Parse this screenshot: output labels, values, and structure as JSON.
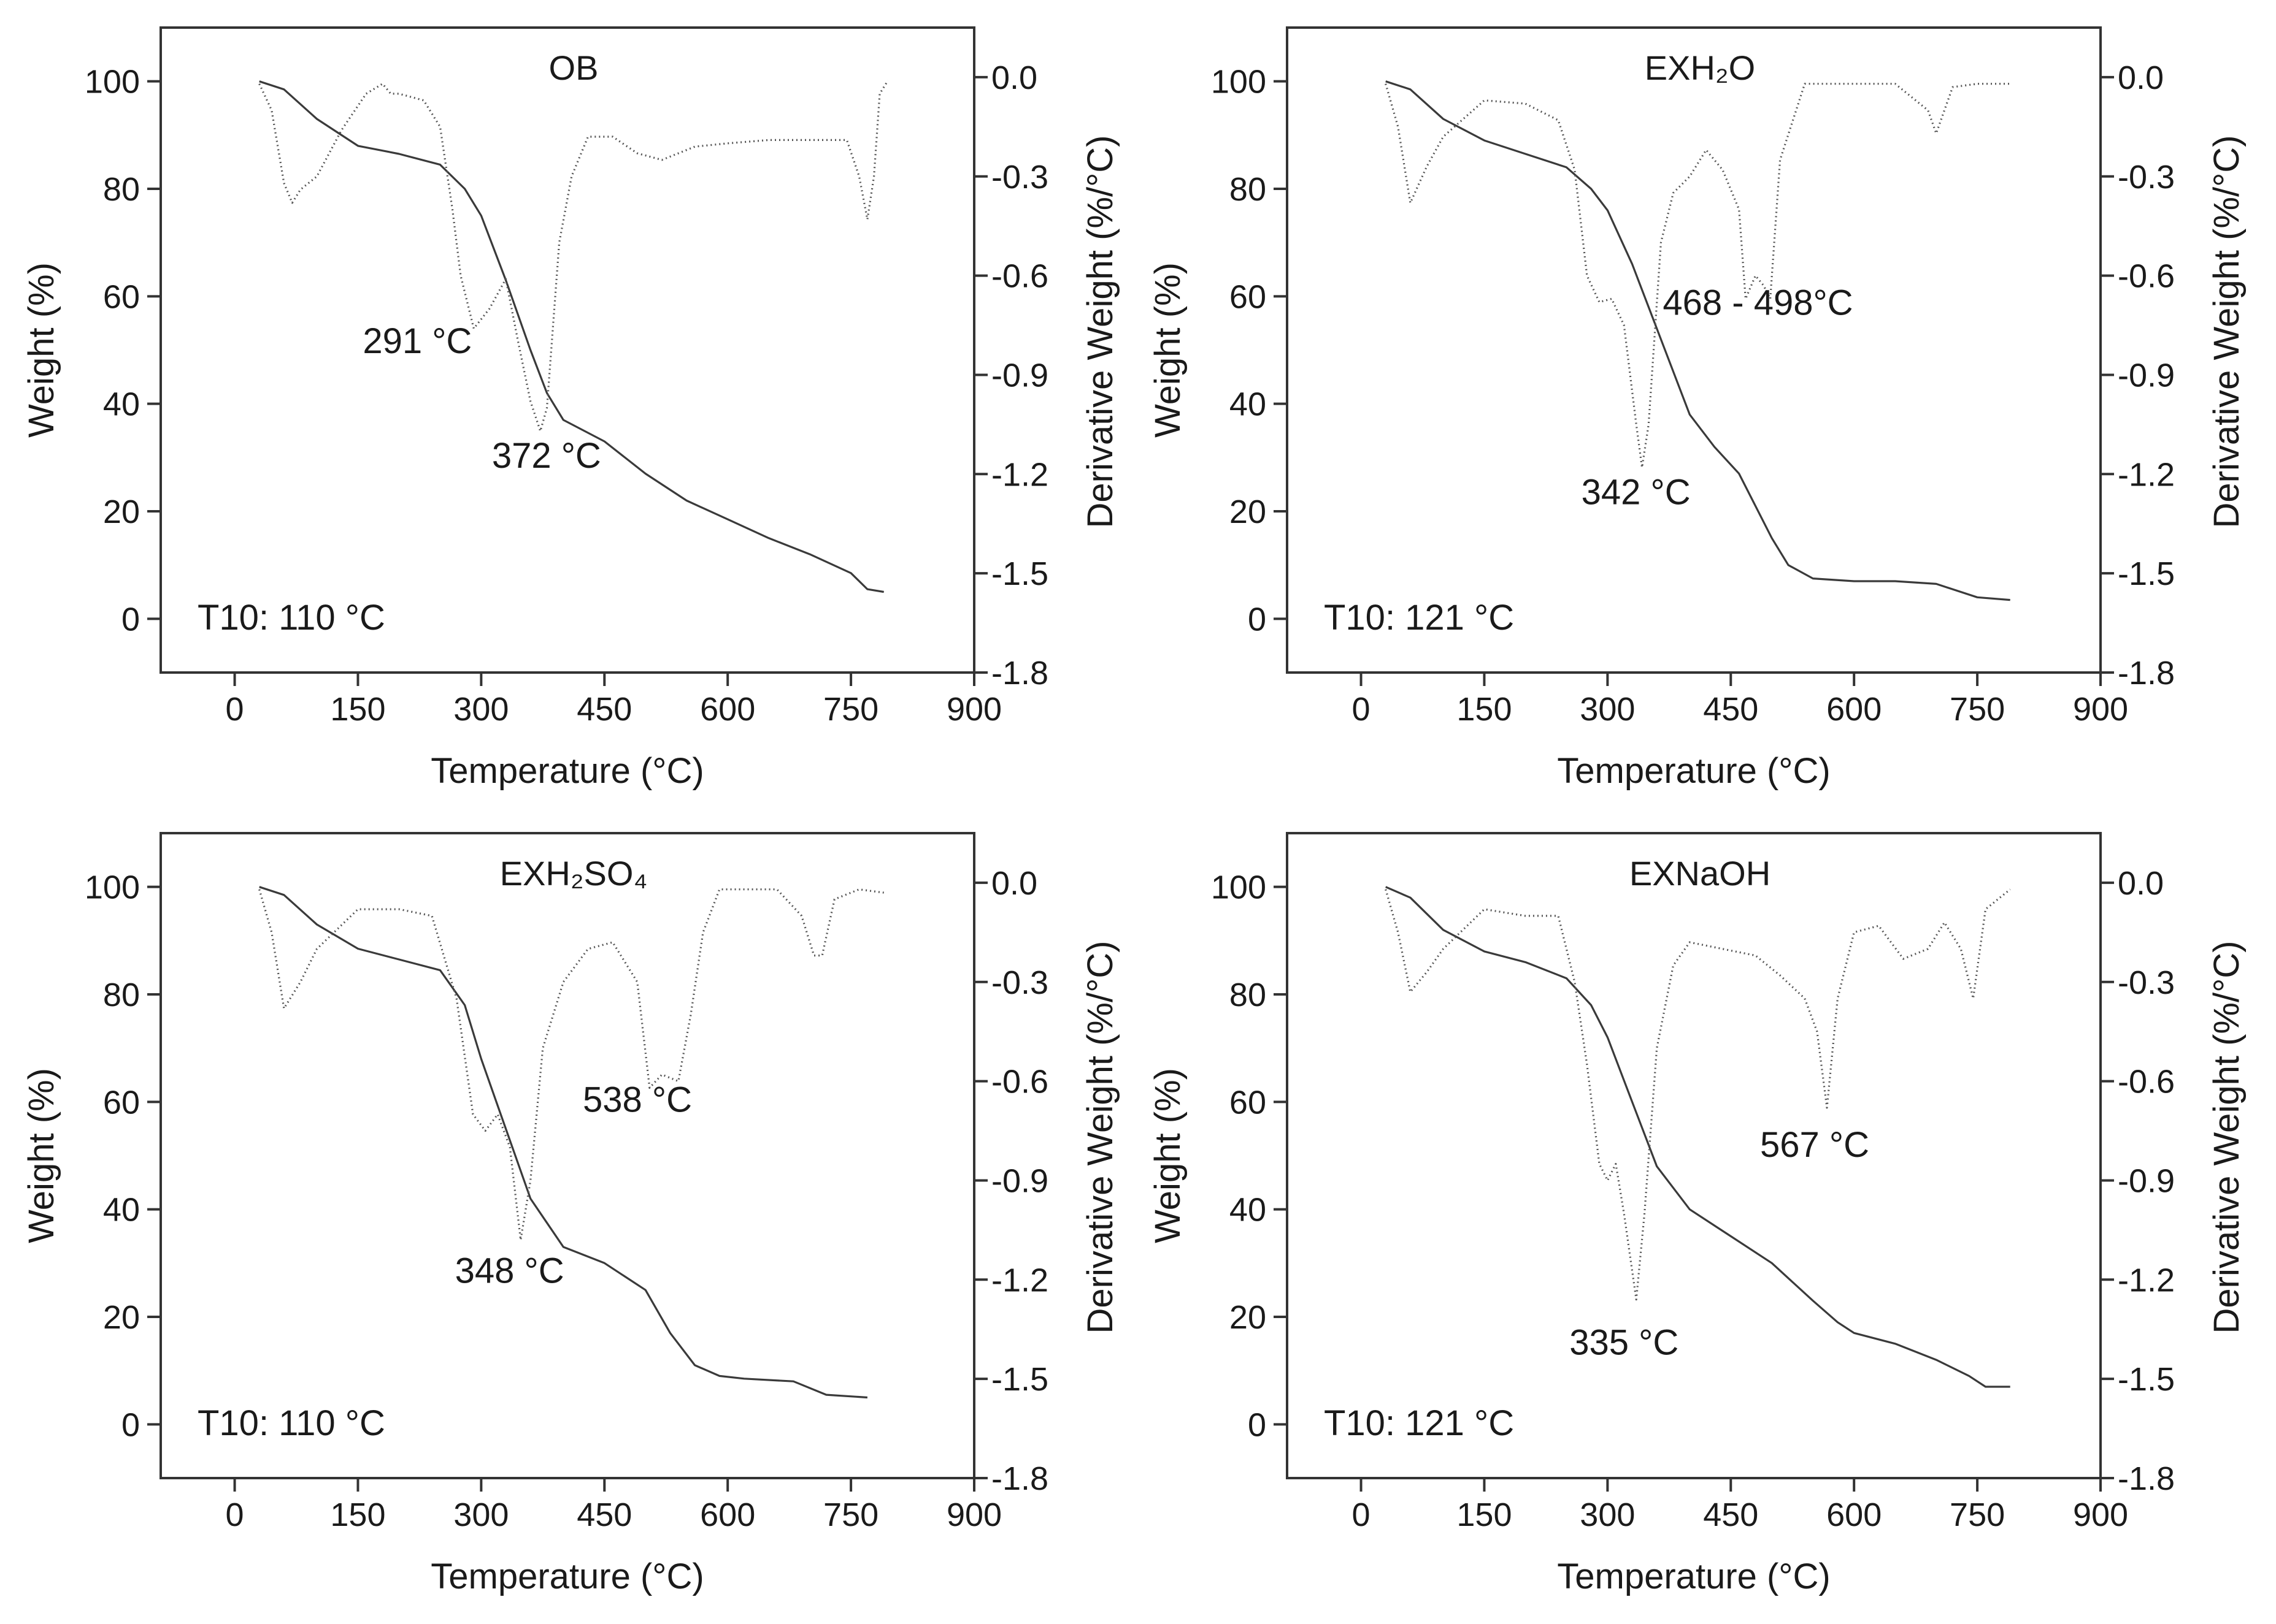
{
  "chart_data": [
    {
      "type": "line",
      "title": "OB",
      "xlabel": "Temperature (°C)",
      "ylabel": "Weight (%)",
      "y2label": "Derivative Weight (%/°C)",
      "xlim": [
        -90,
        900
      ],
      "ylim": [
        -10,
        110
      ],
      "y2lim": [
        -1.8,
        0.15
      ],
      "x_ticks": [
        "0",
        "150",
        "300",
        "450",
        "600",
        "750",
        "900"
      ],
      "y_ticks": [
        "0",
        "20",
        "40",
        "60",
        "80",
        "100"
      ],
      "y2_ticks": [
        "0.0",
        "-0.3",
        "-0.6",
        "-0.9",
        "-1.2",
        "-1.5",
        "-1.8"
      ],
      "annotations": [
        {
          "text": "291 °C",
          "x": 291,
          "y2": -0.76
        },
        {
          "text": "372 °C",
          "x": 372,
          "y2": -1.07
        }
      ],
      "t10": "T10: 110 °C",
      "series": [
        {
          "name": "Weight",
          "axis": "left",
          "x": [
            30,
            60,
            100,
            150,
            200,
            250,
            280,
            300,
            330,
            360,
            380,
            400,
            450,
            500,
            550,
            600,
            650,
            700,
            750,
            770,
            790
          ],
          "y": [
            100,
            98.5,
            93,
            88,
            86.5,
            84.5,
            80,
            75,
            63,
            50,
            42,
            37,
            33,
            27,
            22,
            18.5,
            15,
            12,
            8.5,
            5.5,
            5
          ]
        },
        {
          "name": "Derivative Weight",
          "axis": "right",
          "x": [
            30,
            45,
            60,
            70,
            80,
            100,
            130,
            160,
            180,
            190,
            200,
            230,
            250,
            265,
            275,
            291,
            310,
            330,
            345,
            360,
            372,
            380,
            395,
            410,
            430,
            460,
            490,
            520,
            560,
            600,
            650,
            700,
            745,
            760,
            770,
            778,
            785,
            795
          ],
          "y": [
            -0.02,
            -0.1,
            -0.32,
            -0.38,
            -0.34,
            -0.3,
            -0.16,
            -0.05,
            -0.02,
            -0.05,
            -0.05,
            -0.07,
            -0.15,
            -0.4,
            -0.6,
            -0.76,
            -0.7,
            -0.61,
            -0.8,
            -0.98,
            -1.07,
            -1.0,
            -0.5,
            -0.3,
            -0.18,
            -0.18,
            -0.23,
            -0.25,
            -0.21,
            -0.2,
            -0.19,
            -0.19,
            -0.19,
            -0.3,
            -0.43,
            -0.3,
            -0.05,
            -0.01
          ]
        }
      ]
    },
    {
      "type": "line",
      "title": "EXH₂O",
      "xlabel": "Temperature (°C)",
      "ylabel": "Weight (%)",
      "y2label": "Derivative Weight (%/°C)",
      "xlim": [
        -90,
        900
      ],
      "ylim": [
        -10,
        110
      ],
      "y2lim": [
        -1.8,
        0.15
      ],
      "x_ticks": [
        "0",
        "150",
        "300",
        "450",
        "600",
        "750",
        "900"
      ],
      "y_ticks": [
        "0",
        "20",
        "40",
        "60",
        "80",
        "100"
      ],
      "y2_ticks": [
        "0.0",
        "-0.3",
        "-0.6",
        "-0.9",
        "-1.2",
        "-1.5",
        "-1.8"
      ],
      "annotations": [
        {
          "text": "342 °C",
          "x": 342,
          "y2": -1.18
        },
        {
          "text": "468 - 498°C",
          "x": 483,
          "y2": -0.7
        }
      ],
      "t10": "T10: 121 °C",
      "series": [
        {
          "name": "Weight",
          "axis": "left",
          "x": [
            30,
            60,
            100,
            150,
            200,
            250,
            280,
            300,
            330,
            360,
            400,
            430,
            460,
            500,
            520,
            550,
            600,
            650,
            700,
            750,
            790
          ],
          "y": [
            100,
            98.5,
            93,
            89,
            86.5,
            84,
            80,
            76,
            66,
            54,
            38,
            32,
            27,
            15,
            10,
            7.5,
            7,
            7,
            6.5,
            4,
            3.5
          ]
        },
        {
          "name": "Derivative Weight",
          "axis": "right",
          "x": [
            30,
            45,
            60,
            80,
            100,
            150,
            200,
            240,
            260,
            275,
            290,
            305,
            320,
            335,
            342,
            350,
            365,
            380,
            400,
            420,
            440,
            460,
            468,
            480,
            490,
            498,
            510,
            540,
            600,
            650,
            690,
            700,
            720,
            750,
            790
          ],
          "y": [
            -0.02,
            -0.15,
            -0.38,
            -0.27,
            -0.18,
            -0.07,
            -0.08,
            -0.13,
            -0.28,
            -0.6,
            -0.68,
            -0.67,
            -0.75,
            -1.05,
            -1.18,
            -1.05,
            -0.5,
            -0.35,
            -0.3,
            -0.22,
            -0.28,
            -0.4,
            -0.67,
            -0.6,
            -0.63,
            -0.67,
            -0.25,
            -0.02,
            -0.02,
            -0.02,
            -0.1,
            -0.17,
            -0.03,
            -0.02,
            -0.02
          ]
        }
      ]
    },
    {
      "type": "line",
      "title": "EXH₂SO₄",
      "xlabel": "Temperature (°C)",
      "ylabel": "Weight (%)",
      "y2label": "Derivative Weight (%/°C)",
      "xlim": [
        -90,
        900
      ],
      "ylim": [
        -10,
        110
      ],
      "y2lim": [
        -1.8,
        0.15
      ],
      "x_ticks": [
        "0",
        "150",
        "300",
        "450",
        "600",
        "750",
        "900"
      ],
      "y_ticks": [
        "0",
        "20",
        "40",
        "60",
        "80",
        "100"
      ],
      "y2_ticks": [
        "0.0",
        "-0.3",
        "-0.6",
        "-0.9",
        "-1.2",
        "-1.5",
        "-1.8"
      ],
      "annotations": [
        {
          "text": "348 °C",
          "x": 348,
          "y2": -1.08
        },
        {
          "text": "538 °C",
          "x": 520,
          "y2": -0.6
        }
      ],
      "t10": "T10: 110 °C",
      "series": [
        {
          "name": "Weight",
          "axis": "left",
          "x": [
            30,
            60,
            100,
            150,
            200,
            250,
            280,
            300,
            330,
            360,
            400,
            450,
            500,
            530,
            560,
            590,
            620,
            680,
            720,
            770
          ],
          "y": [
            100,
            98.5,
            93,
            88.5,
            86.5,
            84.5,
            78,
            68,
            55,
            42,
            33,
            30,
            25,
            17,
            11,
            9,
            8.5,
            8,
            5.5,
            5
          ]
        },
        {
          "name": "Derivative Weight",
          "axis": "right",
          "x": [
            30,
            45,
            60,
            80,
            100,
            150,
            200,
            240,
            270,
            290,
            305,
            320,
            335,
            348,
            360,
            375,
            400,
            430,
            460,
            490,
            505,
            520,
            540,
            555,
            570,
            590,
            620,
            660,
            690,
            705,
            715,
            730,
            760,
            790
          ],
          "y": [
            -0.02,
            -0.15,
            -0.38,
            -0.3,
            -0.2,
            -0.08,
            -0.08,
            -0.1,
            -0.35,
            -0.7,
            -0.75,
            -0.7,
            -0.8,
            -1.08,
            -0.9,
            -0.5,
            -0.3,
            -0.2,
            -0.18,
            -0.3,
            -0.62,
            -0.58,
            -0.6,
            -0.4,
            -0.15,
            -0.02,
            -0.02,
            -0.02,
            -0.1,
            -0.22,
            -0.22,
            -0.05,
            -0.02,
            -0.03
          ]
        }
      ]
    },
    {
      "type": "line",
      "title": "EXNaOH",
      "xlabel": "Temperature (°C)",
      "ylabel": "Weight (%)",
      "y2label": "Derivative Weight (%/°C)",
      "xlim": [
        -90,
        900
      ],
      "ylim": [
        -10,
        110
      ],
      "y2lim": [
        -1.8,
        0.15
      ],
      "x_ticks": [
        "0",
        "150",
        "300",
        "450",
        "600",
        "750",
        "900"
      ],
      "y_ticks": [
        "0",
        "20",
        "40",
        "60",
        "80",
        "100"
      ],
      "y2_ticks": [
        "0.0",
        "-0.3",
        "-0.6",
        "-0.9",
        "-1.2",
        "-1.5",
        "-1.8"
      ],
      "annotations": [
        {
          "text": "335 °C",
          "x": 335,
          "y2": -1.26
        },
        {
          "text": "567 °C",
          "x": 567,
          "y2": -0.68
        }
      ],
      "t10": "T10: 121 °C",
      "series": [
        {
          "name": "Weight",
          "axis": "left",
          "x": [
            30,
            60,
            100,
            150,
            200,
            250,
            280,
            300,
            330,
            360,
            400,
            450,
            500,
            550,
            580,
            600,
            650,
            700,
            740,
            760,
            790
          ],
          "y": [
            100,
            98,
            92,
            88,
            86,
            83,
            78,
            72,
            60,
            48,
            40,
            35,
            30,
            23,
            19,
            17,
            15,
            12,
            9,
            7,
            7
          ]
        },
        {
          "name": "Derivative Weight",
          "axis": "right",
          "x": [
            30,
            45,
            60,
            80,
            100,
            150,
            200,
            240,
            260,
            275,
            290,
            300,
            310,
            320,
            335,
            345,
            360,
            380,
            400,
            440,
            480,
            510,
            540,
            555,
            567,
            580,
            600,
            630,
            660,
            690,
            710,
            730,
            745,
            760,
            790
          ],
          "y": [
            -0.02,
            -0.15,
            -0.33,
            -0.27,
            -0.2,
            -0.08,
            -0.1,
            -0.1,
            -0.3,
            -0.55,
            -0.85,
            -0.9,
            -0.85,
            -1.0,
            -1.26,
            -1.0,
            -0.5,
            -0.25,
            -0.18,
            -0.2,
            -0.22,
            -0.28,
            -0.35,
            -0.45,
            -0.68,
            -0.35,
            -0.15,
            -0.13,
            -0.23,
            -0.2,
            -0.12,
            -0.2,
            -0.35,
            -0.08,
            -0.02
          ]
        }
      ]
    }
  ]
}
